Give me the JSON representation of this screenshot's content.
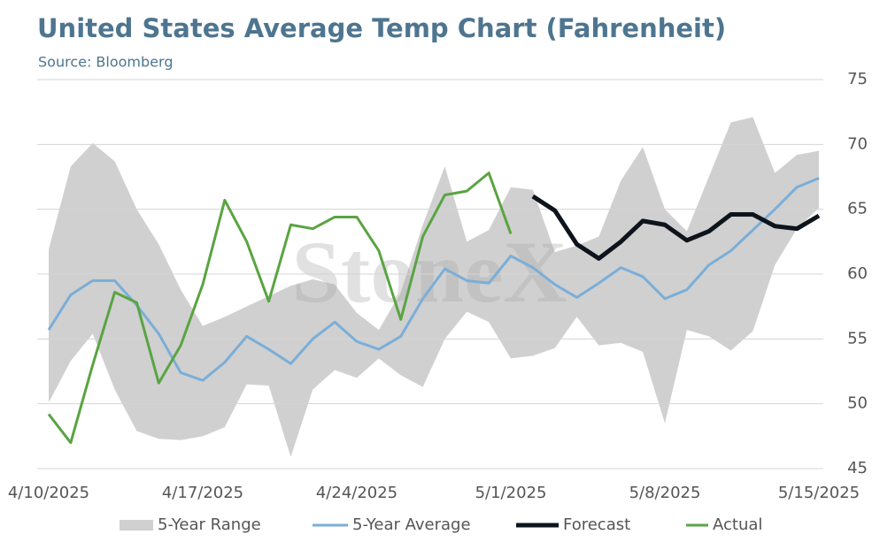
{
  "chart_data": {
    "type": "line",
    "title": "United States Average Temp Chart (Fahrenheit)",
    "subtitle": "Source: Bloomberg",
    "watermark": "StoneX",
    "categories": [
      "4/10/2025",
      null,
      null,
      null,
      null,
      null,
      null,
      "4/17/2025",
      null,
      null,
      null,
      null,
      null,
      null,
      "4/24/2025",
      null,
      null,
      null,
      null,
      null,
      null,
      "5/1/2025",
      null,
      null,
      null,
      null,
      null,
      null,
      "5/8/2025",
      null,
      null,
      null,
      null,
      null,
      null,
      "5/15/2025"
    ],
    "ylim": [
      45,
      75
    ],
    "yticks": [
      45,
      50,
      55,
      60,
      65,
      70,
      75
    ],
    "grid": true,
    "y_axis_side": "right",
    "legend": "bottom",
    "range": {
      "name": "5-Year Range",
      "color": "#d0d0d0",
      "lower": [
        50.1,
        53.3,
        55.4,
        51.1,
        47.9,
        47.3,
        47.2,
        47.5,
        48.2,
        51.5,
        51.4,
        45.9,
        51.1,
        52.6,
        52.0,
        53.5,
        52.2,
        51.3,
        55.0,
        57.1,
        56.3,
        53.5,
        53.7,
        54.3,
        56.7,
        54.5,
        54.7,
        54.0,
        48.5,
        55.7,
        55.2,
        54.1,
        55.6,
        60.7,
        63.5,
        65.1
      ],
      "upper": [
        61.9,
        68.3,
        70.1,
        68.7,
        65.0,
        62.3,
        58.8,
        56.0,
        56.7,
        57.5,
        58.3,
        59.1,
        59.6,
        59.2,
        57.0,
        55.7,
        58.6,
        63.8,
        68.3,
        62.5,
        63.4,
        66.7,
        66.5,
        61.7,
        62.2,
        62.9,
        67.2,
        69.8,
        65.0,
        63.3,
        67.5,
        71.7,
        72.1,
        67.8,
        69.2,
        69.5
      ]
    },
    "series": [
      {
        "name": "5-Year Average",
        "color": "#7aaed8",
        "width": 3,
        "values": [
          55.7,
          58.4,
          59.5,
          59.5,
          57.6,
          55.4,
          52.4,
          51.8,
          53.2,
          55.2,
          54.2,
          53.1,
          55.0,
          56.3,
          54.8,
          54.2,
          55.2,
          58.1,
          60.4,
          59.5,
          59.3,
          61.4,
          60.5,
          59.2,
          58.2,
          59.3,
          60.5,
          59.8,
          58.1,
          58.8,
          60.7,
          61.8,
          63.4,
          65.0,
          66.7,
          67.4
        ]
      },
      {
        "name": "Forecast",
        "color": "#0d141c",
        "width": 5,
        "values": [
          null,
          null,
          null,
          null,
          null,
          null,
          null,
          null,
          null,
          null,
          null,
          null,
          null,
          null,
          null,
          null,
          null,
          null,
          null,
          null,
          null,
          null,
          66.0,
          64.9,
          62.3,
          61.2,
          62.5,
          64.1,
          63.8,
          62.6,
          63.3,
          64.6,
          64.6,
          63.7,
          63.5,
          64.5
        ]
      },
      {
        "name": "Actual",
        "color": "#5aa443",
        "width": 3,
        "values": [
          49.2,
          47.0,
          53.0,
          58.6,
          57.8,
          51.6,
          54.5,
          59.2,
          65.7,
          62.5,
          57.9,
          63.8,
          63.5,
          64.4,
          64.4,
          61.8,
          56.5,
          62.9,
          66.1,
          66.4,
          67.8,
          63.1,
          null,
          null,
          null,
          null,
          null,
          null,
          null,
          null,
          null,
          null,
          null,
          null,
          null,
          null
        ]
      }
    ]
  }
}
